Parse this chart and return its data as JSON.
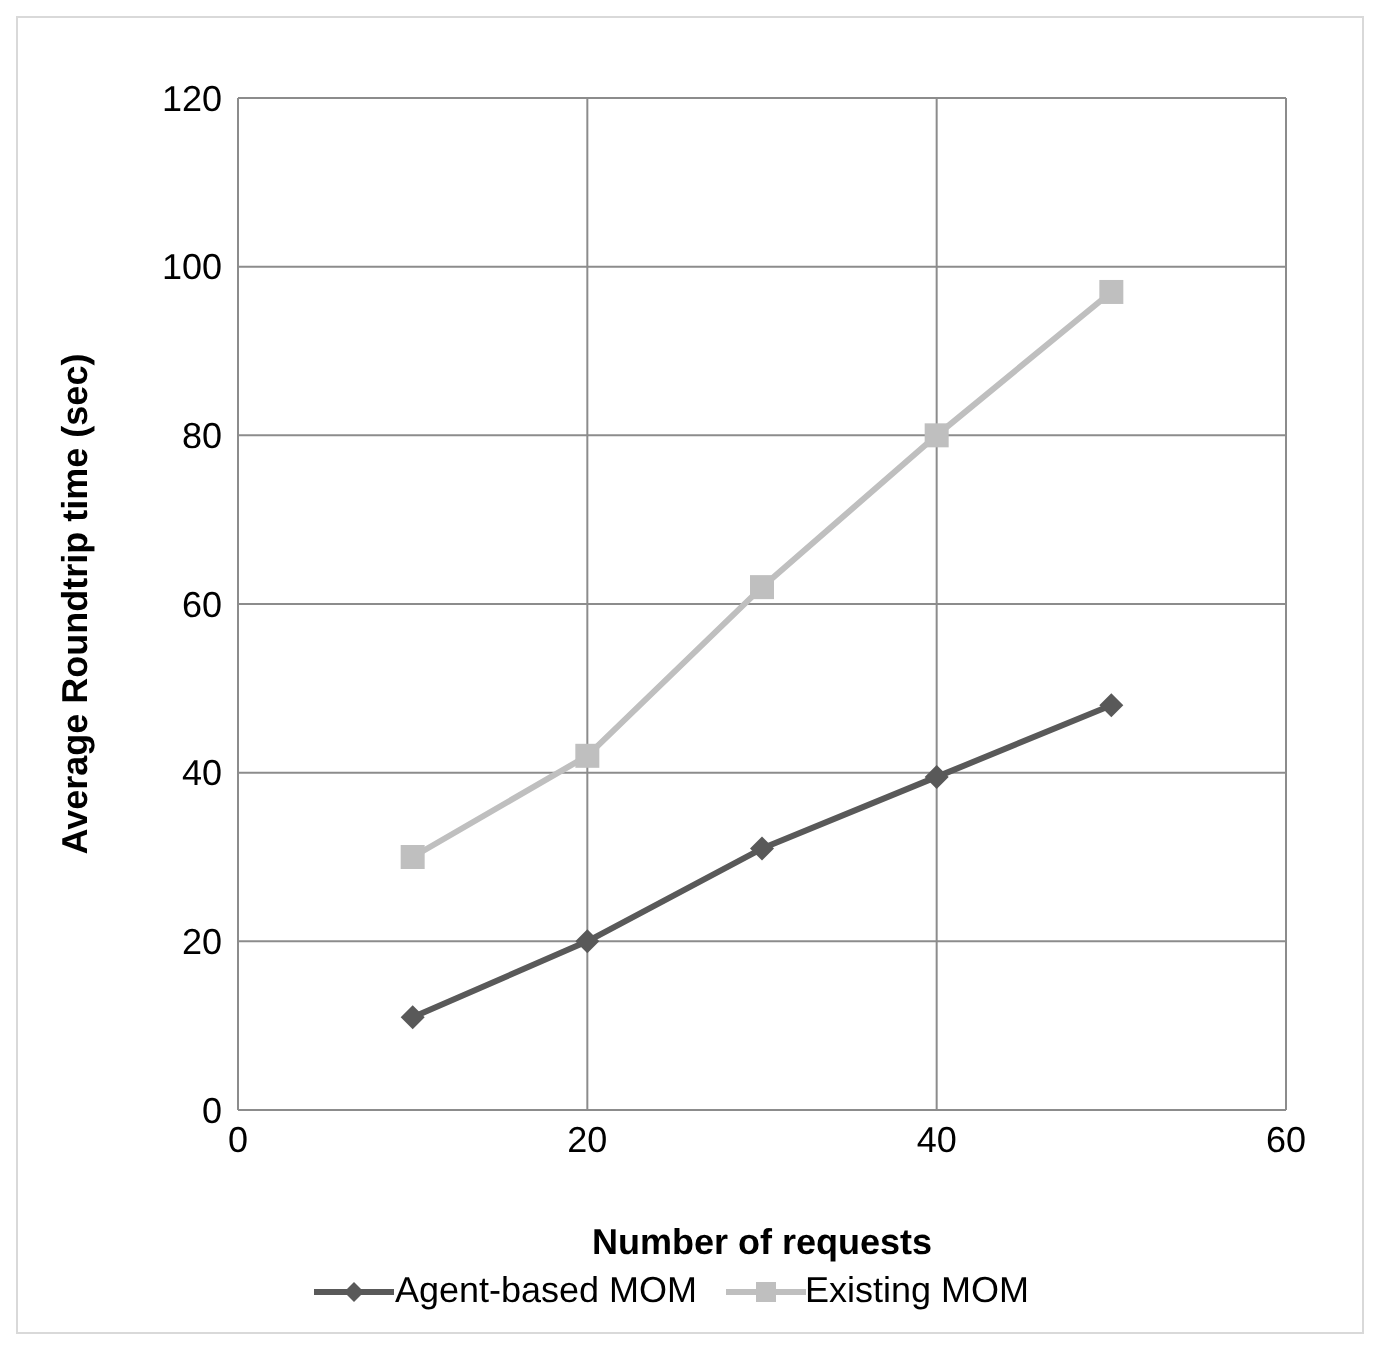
{
  "chart_data": {
    "type": "line",
    "xlabel": "Number of requests",
    "ylabel": "Average Roundtrip time (sec)",
    "x": [
      10,
      20,
      30,
      40,
      50
    ],
    "series": [
      {
        "name": "Agent-based MOM",
        "color": "#595959",
        "marker": "diamond",
        "values": [
          11,
          20,
          31,
          39.5,
          48
        ]
      },
      {
        "name": "Existing MOM",
        "color": "#bfbfbf",
        "marker": "square",
        "values": [
          30,
          42,
          62,
          80,
          97
        ]
      }
    ],
    "xlim": [
      0,
      60
    ],
    "xticks": [
      0,
      20,
      40,
      60
    ],
    "ylim": [
      0,
      120
    ],
    "yticks": [
      0,
      20,
      40,
      60,
      80,
      100,
      120
    ],
    "grid": true,
    "legend": "bottom",
    "line_style": "solid"
  }
}
